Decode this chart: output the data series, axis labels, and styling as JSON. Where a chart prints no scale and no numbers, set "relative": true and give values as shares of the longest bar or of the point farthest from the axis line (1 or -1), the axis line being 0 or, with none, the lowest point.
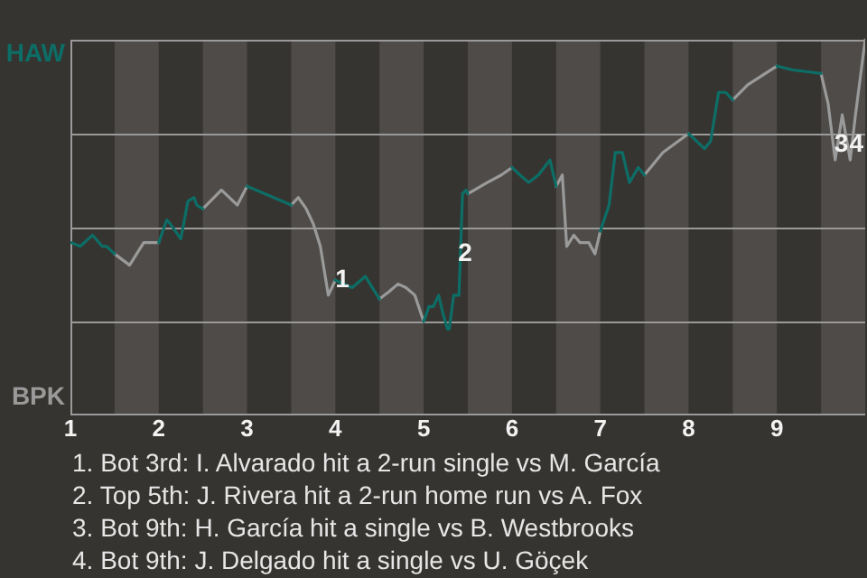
{
  "chart_data": {
    "type": "line",
    "relative": true,
    "legend": "left",
    "xlim": [
      1,
      10
    ],
    "xticks": [
      1,
      2,
      3,
      4,
      5,
      6,
      7,
      8,
      9
    ],
    "series": [
      {
        "name": "HAW",
        "color": "#0c6e66",
        "x": [
          1.01,
          1.11,
          1.25,
          1.36,
          1.41,
          1.5,
          null,
          2.0,
          2.09,
          2.13,
          2.19,
          2.25,
          2.33,
          2.4,
          2.43,
          2.5,
          null,
          3.0,
          3.2,
          3.5,
          null,
          4.0,
          4.19,
          4.34,
          4.5,
          null,
          5.0,
          5.06,
          5.11,
          5.17,
          5.22,
          5.27,
          5.29,
          5.34,
          5.4,
          5.44,
          5.48,
          5.5,
          null,
          6.0,
          6.09,
          6.19,
          6.3,
          6.43,
          6.5,
          null,
          7.0,
          7.1,
          7.17,
          7.25,
          7.33,
          7.43,
          7.5,
          null,
          8.0,
          8.18,
          8.25,
          8.34,
          8.42,
          8.5,
          null,
          9.0,
          9.17,
          9.5
        ],
        "values": [
          0.46,
          0.45,
          0.48,
          0.45,
          0.45,
          0.43,
          null,
          0.46,
          0.52,
          0.51,
          0.49,
          0.47,
          0.57,
          0.58,
          0.56,
          0.55,
          null,
          0.61,
          0.59,
          0.56,
          null,
          0.36,
          0.34,
          0.37,
          0.31,
          null,
          0.25,
          0.29,
          0.29,
          0.32,
          0.27,
          0.23,
          0.23,
          0.32,
          0.32,
          0.59,
          0.6,
          0.59,
          null,
          0.66,
          0.64,
          0.62,
          0.64,
          0.68,
          0.61,
          null,
          0.49,
          0.56,
          0.7,
          0.7,
          0.62,
          0.66,
          0.64,
          null,
          0.75,
          0.71,
          0.73,
          0.86,
          0.86,
          0.84,
          null,
          0.93,
          0.92,
          0.91
        ]
      },
      {
        "name": "BPK",
        "color": "#9a9a9a",
        "x": [
          1.5,
          1.67,
          1.83,
          2.0,
          null,
          2.5,
          2.71,
          2.89,
          3.0,
          null,
          3.5,
          3.58,
          3.67,
          3.75,
          3.83,
          3.92,
          4.0,
          null,
          4.5,
          4.61,
          4.71,
          4.8,
          4.9,
          5.0,
          null,
          5.5,
          5.72,
          5.88,
          6.0,
          null,
          6.5,
          6.57,
          6.62,
          6.7,
          6.77,
          6.87,
          6.94,
          7.0,
          null,
          7.5,
          7.71,
          8.0,
          null,
          8.5,
          8.67,
          9.0,
          null,
          9.5,
          9.58,
          9.66,
          9.74,
          9.83,
          9.89,
          10.0
        ],
        "values": [
          0.43,
          0.4,
          0.46,
          0.46,
          null,
          0.55,
          0.6,
          0.56,
          0.61,
          null,
          0.56,
          0.58,
          0.55,
          0.51,
          0.45,
          0.32,
          0.36,
          null,
          0.31,
          0.33,
          0.35,
          0.34,
          0.32,
          0.25,
          null,
          0.59,
          0.62,
          0.64,
          0.66,
          null,
          0.61,
          0.64,
          0.45,
          0.48,
          0.46,
          0.46,
          0.43,
          0.49,
          null,
          0.64,
          0.7,
          0.75,
          null,
          0.84,
          0.88,
          0.93,
          null,
          0.91,
          0.83,
          0.68,
          0.8,
          0.68,
          0.8,
          1
        ]
      }
    ],
    "bands": [
      {
        "axis": "x",
        "from": 1.5,
        "to": 2,
        "color": "#4e4b48"
      },
      {
        "axis": "x",
        "from": 2.5,
        "to": 3,
        "color": "#4e4b48"
      },
      {
        "axis": "x",
        "from": 3.5,
        "to": 4,
        "color": "#4e4b48"
      },
      {
        "axis": "x",
        "from": 4.5,
        "to": 5,
        "color": "#4e4b48"
      },
      {
        "axis": "x",
        "from": 5.5,
        "to": 6,
        "color": "#4e4b48"
      },
      {
        "axis": "x",
        "from": 6.5,
        "to": 7,
        "color": "#4e4b48"
      },
      {
        "axis": "x",
        "from": 7.5,
        "to": 8,
        "color": "#4e4b48"
      },
      {
        "axis": "x",
        "from": 8.5,
        "to": 9,
        "color": "#4e4b48"
      },
      {
        "axis": "x",
        "from": 9.5,
        "to": 10,
        "color": "#4e4b48"
      }
    ],
    "ref_lines": [
      {
        "axis": "y",
        "value": 0.25,
        "color": "#9a9a9a"
      },
      {
        "axis": "y",
        "value": 0.5,
        "color": "#9a9a9a"
      },
      {
        "axis": "y",
        "value": 0.75,
        "color": "#9a9a9a"
      },
      {
        "axis": "y",
        "value": 1,
        "color": "#9a9a9a"
      }
    ],
    "annotations": [
      {
        "text": "1",
        "x": 4.08,
        "y": 0.36
      },
      {
        "text": "2",
        "x": 5.47,
        "y": 0.43
      },
      {
        "text": "3",
        "x": 9.73,
        "y": 0.72
      },
      {
        "text": "4",
        "x": 9.9,
        "y": 0.72
      },
      "1. Bot 3rd: I. Alvarado hit a 2-run single vs M. García",
      "2. Top 5th: J. Rivera hit a 2-run home run vs A. Fox",
      "3. Bot 9th: H. García hit a single vs B. Westbrooks",
      "4. Bot 9th: J. Delgado hit a single vs U. Göçek"
    ]
  }
}
